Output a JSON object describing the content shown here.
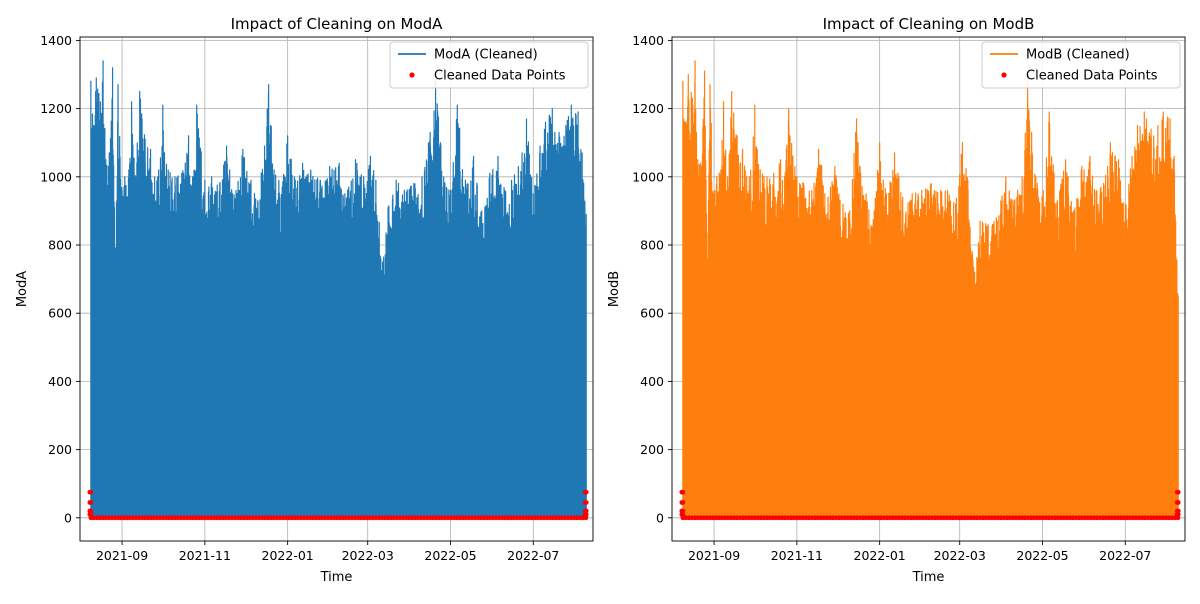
{
  "chart_data": [
    {
      "type": "line",
      "title": "Impact of Cleaning on ModA",
      "xlabel": "Time",
      "ylabel": "ModA",
      "x_range": [
        "2021-08-01",
        "2022-08-14"
      ],
      "ylim": [
        -68,
        1410
      ],
      "y_ticks": [
        0,
        200,
        400,
        600,
        800,
        1000,
        1200,
        1400
      ],
      "x_ticks": [
        "2021-09-01",
        "2021-11-01",
        "2022-01-01",
        "2022-03-01",
        "2022-05-01",
        "2022-07-01"
      ],
      "x_tick_labels": [
        "2021-09",
        "2021-11",
        "2022-01",
        "2022-03",
        "2022-05",
        "2022-07"
      ],
      "grid": true,
      "legend_position": "top-right",
      "series": [
        {
          "name": "ModA (Cleaned)",
          "kind": "line",
          "color": "#1f77b4",
          "x_start": "2021-08-09",
          "x_end": "2022-08-09",
          "y_min": 0,
          "envelope_peaks": [
            [
              "2021-08-09",
              1280
            ],
            [
              "2021-08-11",
              1150
            ],
            [
              "2021-08-13",
              1290
            ],
            [
              "2021-08-16",
              1220
            ],
            [
              "2021-08-18",
              1340
            ],
            [
              "2021-08-20",
              1050
            ],
            [
              "2021-08-22",
              1030
            ],
            [
              "2021-08-25",
              1320
            ],
            [
              "2021-08-27",
              760
            ],
            [
              "2021-08-29",
              1270
            ],
            [
              "2021-09-01",
              960
            ],
            [
              "2021-09-03",
              1000
            ],
            [
              "2021-09-06",
              1020
            ],
            [
              "2021-09-08",
              1220
            ],
            [
              "2021-09-11",
              1000
            ],
            [
              "2021-09-14",
              1250
            ],
            [
              "2021-09-18",
              1110
            ],
            [
              "2021-09-22",
              1080
            ],
            [
              "2021-09-25",
              1000
            ],
            [
              "2021-09-28",
              1020
            ],
            [
              "2021-10-01",
              1210
            ],
            [
              "2021-10-05",
              1020
            ],
            [
              "2021-10-10",
              1000
            ],
            [
              "2021-10-15",
              1010
            ],
            [
              "2021-10-20",
              1120
            ],
            [
              "2021-10-23",
              1000
            ],
            [
              "2021-10-26",
              1210
            ],
            [
              "2021-11-01",
              990
            ],
            [
              "2021-11-06",
              1000
            ],
            [
              "2021-11-12",
              980
            ],
            [
              "2021-11-17",
              1090
            ],
            [
              "2021-11-24",
              960
            ],
            [
              "2021-11-29",
              1080
            ],
            [
              "2021-12-05",
              990
            ],
            [
              "2021-12-10",
              930
            ],
            [
              "2021-12-15",
              1090
            ],
            [
              "2021-12-18",
              1270
            ],
            [
              "2021-12-22",
              1020
            ],
            [
              "2021-12-28",
              970
            ],
            [
              "2022-01-01",
              1120
            ],
            [
              "2022-01-06",
              1000
            ],
            [
              "2022-01-12",
              1040
            ],
            [
              "2022-01-18",
              1020
            ],
            [
              "2022-01-25",
              990
            ],
            [
              "2022-02-01",
              1030
            ],
            [
              "2022-02-08",
              1040
            ],
            [
              "2022-02-15",
              970
            ],
            [
              "2022-02-20",
              1050
            ],
            [
              "2022-02-26",
              1000
            ],
            [
              "2022-03-03",
              1060
            ],
            [
              "2022-03-07",
              990
            ],
            [
              "2022-03-12",
              750
            ],
            [
              "2022-03-16",
              910
            ],
            [
              "2022-03-22",
              990
            ],
            [
              "2022-03-28",
              960
            ],
            [
              "2022-04-04",
              980
            ],
            [
              "2022-04-10",
              1000
            ],
            [
              "2022-04-16",
              1130
            ],
            [
              "2022-04-20",
              1280
            ],
            [
              "2022-04-26",
              1000
            ],
            [
              "2022-05-01",
              960
            ],
            [
              "2022-05-06",
              1210
            ],
            [
              "2022-05-12",
              990
            ],
            [
              "2022-05-18",
              1060
            ],
            [
              "2022-05-24",
              900
            ],
            [
              "2022-05-30",
              1010
            ],
            [
              "2022-06-05",
              1060
            ],
            [
              "2022-06-10",
              960
            ],
            [
              "2022-06-15",
              990
            ],
            [
              "2022-06-20",
              1030
            ],
            [
              "2022-06-26",
              1170
            ],
            [
              "2022-07-01",
              950
            ],
            [
              "2022-07-06",
              1090
            ],
            [
              "2022-07-10",
              1160
            ],
            [
              "2022-07-15",
              1200
            ],
            [
              "2022-07-20",
              1130
            ],
            [
              "2022-07-25",
              1150
            ],
            [
              "2022-07-29",
              1210
            ],
            [
              "2022-08-03",
              1190
            ],
            [
              "2022-08-06",
              1070
            ],
            [
              "2022-08-09",
              890
            ]
          ]
        },
        {
          "name": "Cleaned Data Points",
          "kind": "scatter",
          "color": "#ff0000",
          "x_start": "2021-08-09",
          "x_end": "2022-08-09",
          "y_values": [
            0
          ],
          "endpoint_y_values": [
            10,
            20,
            45,
            75
          ]
        }
      ]
    },
    {
      "type": "line",
      "title": "Impact of Cleaning on ModB",
      "xlabel": "Time",
      "ylabel": "ModB",
      "x_range": [
        "2021-08-01",
        "2022-08-14"
      ],
      "ylim": [
        -68,
        1410
      ],
      "y_ticks": [
        0,
        200,
        400,
        600,
        800,
        1000,
        1200,
        1400
      ],
      "x_ticks": [
        "2021-09-01",
        "2021-11-01",
        "2022-01-01",
        "2022-03-01",
        "2022-05-01",
        "2022-07-01"
      ],
      "x_tick_labels": [
        "2021-09",
        "2021-11",
        "2022-01",
        "2022-03",
        "2022-05",
        "2022-07"
      ],
      "grid": true,
      "legend_position": "top-right",
      "series": [
        {
          "name": "ModB (Cleaned)",
          "kind": "line",
          "color": "#ff7f0e",
          "x_start": "2021-08-09",
          "x_end": "2022-08-09",
          "y_min": 0,
          "envelope_peaks": [
            [
              "2021-08-09",
              1280
            ],
            [
              "2021-08-11",
              1160
            ],
            [
              "2021-08-13",
              1300
            ],
            [
              "2021-08-16",
              1230
            ],
            [
              "2021-08-18",
              1340
            ],
            [
              "2021-08-20",
              1050
            ],
            [
              "2021-08-22",
              1040
            ],
            [
              "2021-08-25",
              1310
            ],
            [
              "2021-08-27",
              760
            ],
            [
              "2021-08-29",
              1270
            ],
            [
              "2021-09-01",
              960
            ],
            [
              "2021-09-03",
              1000
            ],
            [
              "2021-09-06",
              1020
            ],
            [
              "2021-09-08",
              1220
            ],
            [
              "2021-09-11",
              1000
            ],
            [
              "2021-09-14",
              1250
            ],
            [
              "2021-09-18",
              1120
            ],
            [
              "2021-09-22",
              1080
            ],
            [
              "2021-09-25",
              1000
            ],
            [
              "2021-09-28",
              1020
            ],
            [
              "2021-10-01",
              1210
            ],
            [
              "2021-10-05",
              1020
            ],
            [
              "2021-10-10",
              1000
            ],
            [
              "2021-10-15",
              1010
            ],
            [
              "2021-10-20",
              1050
            ],
            [
              "2021-10-23",
              1000
            ],
            [
              "2021-10-26",
              1200
            ],
            [
              "2021-11-01",
              1000
            ],
            [
              "2021-11-06",
              980
            ],
            [
              "2021-11-12",
              960
            ],
            [
              "2021-11-17",
              1080
            ],
            [
              "2021-11-24",
              940
            ],
            [
              "2021-11-29",
              1030
            ],
            [
              "2021-12-05",
              920
            ],
            [
              "2021-12-10",
              900
            ],
            [
              "2021-12-15",
              1170
            ],
            [
              "2021-12-18",
              1010
            ],
            [
              "2021-12-22",
              950
            ],
            [
              "2021-12-28",
              900
            ],
            [
              "2022-01-01",
              1100
            ],
            [
              "2022-01-06",
              950
            ],
            [
              "2022-01-12",
              1070
            ],
            [
              "2022-01-18",
              940
            ],
            [
              "2022-01-25",
              950
            ],
            [
              "2022-02-01",
              960
            ],
            [
              "2022-02-08",
              980
            ],
            [
              "2022-02-15",
              960
            ],
            [
              "2022-02-20",
              960
            ],
            [
              "2022-02-26",
              920
            ],
            [
              "2022-03-03",
              1100
            ],
            [
              "2022-03-07",
              990
            ],
            [
              "2022-03-12",
              720
            ],
            [
              "2022-03-16",
              870
            ],
            [
              "2022-03-22",
              860
            ],
            [
              "2022-03-28",
              880
            ],
            [
              "2022-04-04",
              1000
            ],
            [
              "2022-04-10",
              930
            ],
            [
              "2022-04-16",
              1000
            ],
            [
              "2022-04-20",
              1290
            ],
            [
              "2022-04-26",
              1000
            ],
            [
              "2022-05-01",
              940
            ],
            [
              "2022-05-06",
              1190
            ],
            [
              "2022-05-12",
              930
            ],
            [
              "2022-05-18",
              1050
            ],
            [
              "2022-05-24",
              900
            ],
            [
              "2022-05-30",
              1030
            ],
            [
              "2022-06-05",
              1060
            ],
            [
              "2022-06-10",
              960
            ],
            [
              "2022-06-15",
              980
            ],
            [
              "2022-06-20",
              1100
            ],
            [
              "2022-06-26",
              1050
            ],
            [
              "2022-07-01",
              920
            ],
            [
              "2022-07-06",
              1060
            ],
            [
              "2022-07-10",
              1150
            ],
            [
              "2022-07-15",
              1190
            ],
            [
              "2022-07-20",
              1140
            ],
            [
              "2022-07-25",
              1150
            ],
            [
              "2022-07-29",
              1190
            ],
            [
              "2022-08-03",
              1170
            ],
            [
              "2022-08-06",
              1060
            ],
            [
              "2022-08-09",
              650
            ]
          ]
        },
        {
          "name": "Cleaned Data Points",
          "kind": "scatter",
          "color": "#ff0000",
          "x_start": "2021-08-09",
          "x_end": "2022-08-09",
          "y_values": [
            0
          ],
          "endpoint_y_values": [
            10,
            20,
            45,
            75
          ]
        }
      ]
    }
  ]
}
